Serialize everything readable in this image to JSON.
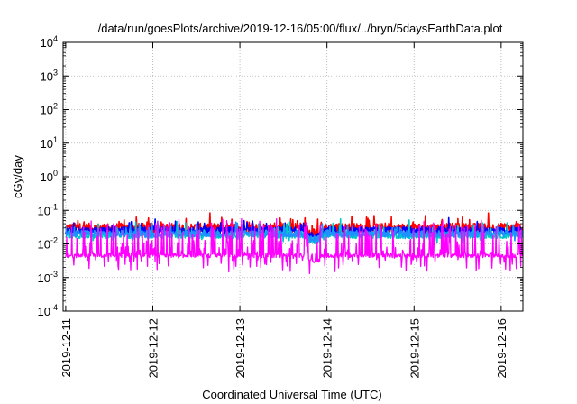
{
  "chart_data": {
    "type": "line",
    "title": "/data/run/goesPlots/archive/2019-12-16/05:00/flux/../bryn/5daysEarthData.plot",
    "xlabel": "Coordinated Universal Time (UTC)",
    "ylabel": "cGy/day",
    "y_scale": "log",
    "ylim_exp": [
      -4,
      4
    ],
    "y_ticks": [
      {
        "exp": -4,
        "base": "10",
        "sup": "-4"
      },
      {
        "exp": -3,
        "base": "10",
        "sup": "-3"
      },
      {
        "exp": -2,
        "base": "10",
        "sup": "-2"
      },
      {
        "exp": -1,
        "base": "10",
        "sup": "-1"
      },
      {
        "exp": 0,
        "base": "10",
        "sup": "0"
      },
      {
        "exp": 1,
        "base": "10",
        "sup": "1"
      },
      {
        "exp": 2,
        "base": "10",
        "sup": "2"
      },
      {
        "exp": 3,
        "base": "10",
        "sup": "3"
      },
      {
        "exp": 4,
        "base": "10",
        "sup": "4"
      }
    ],
    "xlim_days": [
      -0.03,
      5.25
    ],
    "x_ticks": [
      {
        "day": 0,
        "label": "2019-12-11"
      },
      {
        "day": 1,
        "label": "2019-12-12"
      },
      {
        "day": 2,
        "label": "2019-12-13"
      },
      {
        "day": 3,
        "label": "2019-12-14"
      },
      {
        "day": 4,
        "label": "2019-12-15"
      },
      {
        "day": 5,
        "label": "2019-12-16"
      }
    ],
    "grid": true,
    "series": [
      {
        "color": "#ff0000",
        "base": 0.03,
        "spread": 0.28,
        "spike_prob": 0.1,
        "spike_amp": 0.25
      },
      {
        "color": "#0000ff",
        "base": 0.025,
        "spread": 0.22,
        "spike_prob": 0.08,
        "spike_amp": 0.2
      },
      {
        "color": "#00c8c8",
        "base": 0.018,
        "spread": 0.18,
        "spike_prob": 0.1,
        "spike_amp": 0.3
      },
      {
        "color": "#1e90ff",
        "base": 0.02,
        "spread": 0.2,
        "spike_prob": 0.08,
        "spike_amp": 0.22
      },
      {
        "color": "#ff00ff",
        "base": 0.0045,
        "spread": 0.12,
        "spike_prob": 0.35,
        "spike_amp": 0.75
      }
    ]
  }
}
